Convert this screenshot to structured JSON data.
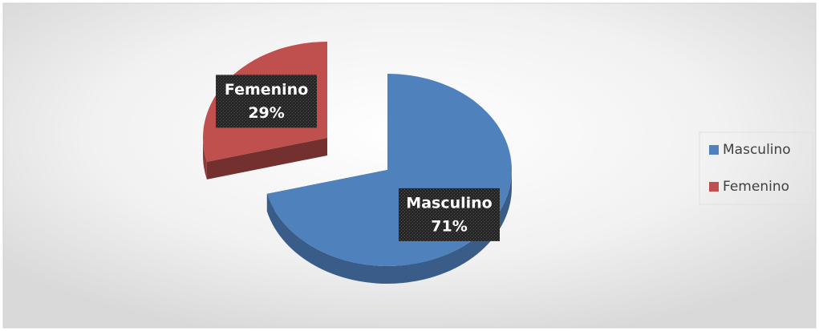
{
  "chart_data": {
    "type": "pie",
    "categories": [
      "Masculino",
      "Femenino"
    ],
    "values": [
      71,
      29
    ],
    "value_labels": [
      "71%",
      "29%"
    ],
    "colors": [
      "#4f81bd",
      "#c0504d"
    ],
    "legend": "right"
  }
}
